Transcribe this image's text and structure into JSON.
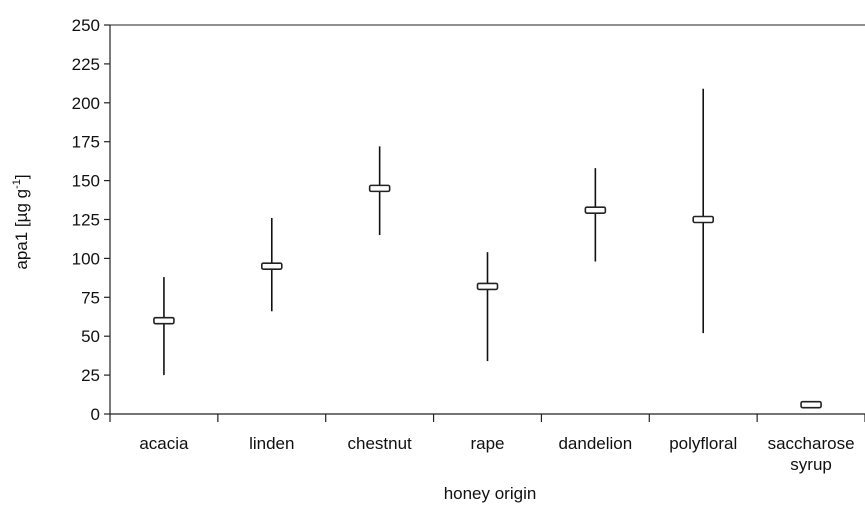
{
  "chart_data": {
    "type": "range",
    "title": "",
    "xlabel": "honey origin",
    "ylabel_main": "apa1 [µg g",
    "ylabel_sup": "-1",
    "ylabel_end": "]",
    "ylim": [
      0,
      250
    ],
    "yticks": [
      0,
      25,
      50,
      75,
      100,
      125,
      150,
      175,
      200,
      225,
      250
    ],
    "grid": false,
    "categories": [
      [
        "acacia"
      ],
      [
        "linden"
      ],
      [
        "chestnut"
      ],
      [
        "rape"
      ],
      [
        "dandelion"
      ],
      [
        "polyfloral"
      ],
      [
        "saccharose",
        "syrup"
      ]
    ],
    "series": [
      {
        "min": [
          25,
          66,
          115,
          34,
          98,
          52,
          null
        ],
        "max": [
          88,
          126,
          172,
          104,
          158,
          209,
          null
        ],
        "mean": [
          60,
          95,
          145,
          82,
          131,
          125,
          6
        ]
      }
    ]
  }
}
